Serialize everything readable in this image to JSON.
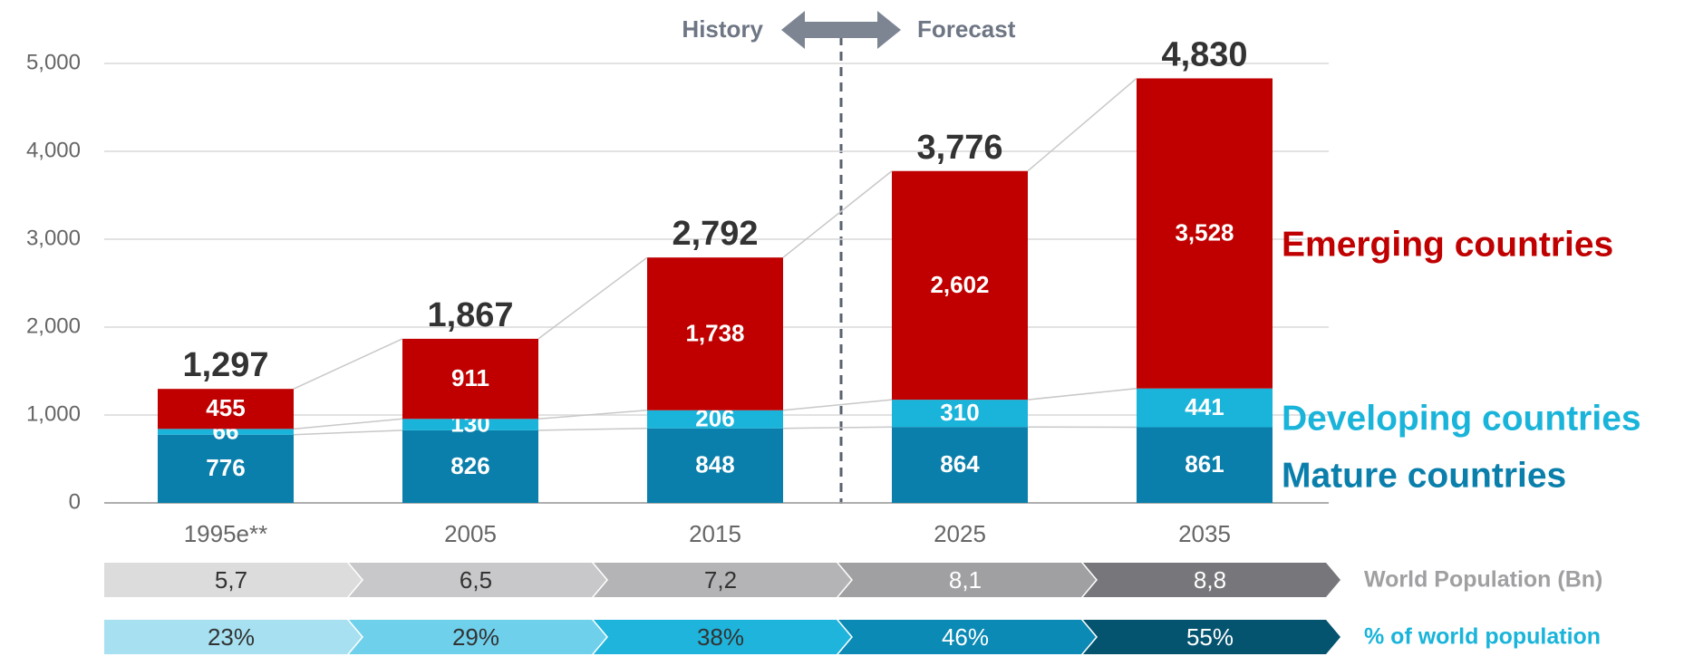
{
  "chart_data": {
    "type": "stacked_bar",
    "categories": [
      "1995e**",
      "2005",
      "2015",
      "2025",
      "2035"
    ],
    "series": [
      {
        "name": "Mature countries",
        "color": "#0a7fab",
        "values": [
          776,
          826,
          848,
          864,
          861
        ]
      },
      {
        "name": "Developing countries",
        "color": "#1ab4da",
        "values": [
          66,
          130,
          206,
          310,
          441
        ]
      },
      {
        "name": "Emerging countries",
        "color": "#c00000",
        "values": [
          455,
          911,
          1738,
          2602,
          3528
        ],
        "value_labels": [
          "455",
          "911",
          "1,738",
          "2,602",
          "3,528"
        ]
      }
    ],
    "totals": {
      "values": [
        1297,
        1867,
        2792,
        3776,
        4830
      ],
      "value_labels": [
        "1,297",
        "1,867",
        "2,792",
        "3,776",
        "4,830"
      ]
    },
    "ylim": [
      0,
      5000
    ],
    "yticks": [
      0,
      {
        "value": 1000,
        "label": "1,000"
      },
      {
        "value": 2000,
        "label": "2,000"
      },
      {
        "value": 3000,
        "label": "3,000"
      },
      {
        "value": 4000,
        "label": "4,000"
      },
      {
        "value": 5000,
        "label": "5,000"
      }
    ],
    "grid": true,
    "annotations": {
      "history": "History",
      "forecast": "Forecast"
    },
    "rows": [
      {
        "label": "World Population (Bn)",
        "values": [
          5.7,
          6.5,
          7.2,
          8.1,
          8.8
        ],
        "value_labels": [
          "5,7",
          "6,5",
          "7,2",
          "8,1",
          "8,8"
        ],
        "colors": [
          "#dcdcdd",
          "#c8c8ca",
          "#b4b4b6",
          "#a0a0a3",
          "#77777b"
        ],
        "label_color": "#a0a0a3"
      },
      {
        "label": "% of world population",
        "values": [
          23,
          29,
          38,
          46,
          55
        ],
        "value_labels": [
          "23%",
          "29%",
          "38%",
          "46%",
          "55%"
        ],
        "colors": [
          "#a6e0f1",
          "#6fd0ec",
          "#1fb4dc",
          "#0a8ab5",
          "#05546f"
        ],
        "label_color": "#1ab4da"
      }
    ]
  }
}
